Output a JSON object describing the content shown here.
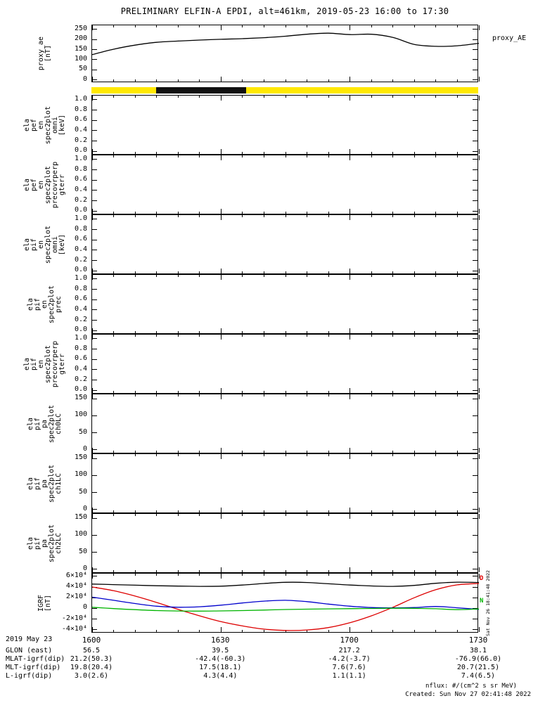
{
  "title": "PRELIMINARY ELFIN-A EPDI, alt=461km, 2019-05-23 16:00 to 17:30",
  "colors": {
    "availability_yellow": "#ffe800",
    "availability_black": "#111111",
    "igrf_red": "#dd0000",
    "igrf_blue": "#0000cc",
    "igrf_green": "#00b400",
    "line_black": "#000000"
  },
  "chart_data": [
    {
      "id": "proxy-ae",
      "type": "line",
      "ylabel_lines": [
        "proxy_ae",
        "[nT]"
      ],
      "right_label": "proxy_AE",
      "ylim": [
        -15,
        270
      ],
      "yticks": [
        {
          "v": 0,
          "label": "0"
        },
        {
          "v": 50,
          "label": "50"
        },
        {
          "v": 100,
          "label": "100"
        },
        {
          "v": 150,
          "label": "150"
        },
        {
          "v": 200,
          "label": "200"
        },
        {
          "v": 250,
          "label": "250"
        }
      ],
      "x_start": "16:00",
      "x_minutes": [
        0,
        5,
        10,
        15,
        20,
        25,
        30,
        35,
        40,
        45,
        50,
        55,
        60,
        65,
        70,
        75,
        80,
        85,
        90
      ],
      "series": [
        {
          "name": "proxy_AE",
          "color": "#000000",
          "values": [
            125,
            152,
            172,
            186,
            192,
            197,
            201,
            204,
            209,
            216,
            226,
            231,
            224,
            226,
            210,
            175,
            166,
            169,
            181
          ]
        }
      ]
    },
    {
      "id": "availability",
      "type": "interval-bar",
      "bar_color": "#ffe800",
      "segments": [
        {
          "start_min": 15,
          "end_min": 36,
          "color": "#111111"
        }
      ]
    },
    {
      "id": "ela-pef-en-omni",
      "type": "spec",
      "ylabel_lines": [
        "ela",
        "pef",
        "en",
        "spec2plot",
        "omni",
        "[keV]"
      ],
      "ylim": [
        -0.08,
        1.08
      ],
      "yticks": [
        {
          "v": 0,
          "label": "0.0"
        },
        {
          "v": 0.2,
          "label": "0.2"
        },
        {
          "v": 0.4,
          "label": "0.4"
        },
        {
          "v": 0.6,
          "label": "0.6"
        },
        {
          "v": 0.8,
          "label": "0.8"
        },
        {
          "v": 1,
          "label": "1.0"
        }
      ],
      "series": []
    },
    {
      "id": "ela-pef-en-precovrperp-gterr",
      "type": "spec",
      "ylabel_lines": [
        "ela",
        "pef",
        "en",
        "spec2plot",
        "precovrperp",
        "gterr"
      ],
      "ylim": [
        -0.08,
        1.08
      ],
      "yticks": [
        {
          "v": 0,
          "label": "0.0"
        },
        {
          "v": 0.2,
          "label": "0.2"
        },
        {
          "v": 0.4,
          "label": "0.4"
        },
        {
          "v": 0.6,
          "label": "0.6"
        },
        {
          "v": 0.8,
          "label": "0.8"
        },
        {
          "v": 1,
          "label": "1.0"
        }
      ],
      "series": []
    },
    {
      "id": "ela-pif-en-omni",
      "type": "spec",
      "ylabel_lines": [
        "ela",
        "pif",
        "en",
        "spec2plot",
        "omni",
        "[keV]"
      ],
      "ylim": [
        -0.08,
        1.08
      ],
      "yticks": [
        {
          "v": 0,
          "label": "0.0"
        },
        {
          "v": 0.2,
          "label": "0.2"
        },
        {
          "v": 0.4,
          "label": "0.4"
        },
        {
          "v": 0.6,
          "label": "0.6"
        },
        {
          "v": 0.8,
          "label": "0.8"
        },
        {
          "v": 1,
          "label": "1.0"
        }
      ],
      "series": []
    },
    {
      "id": "ela-pif-en-prec",
      "type": "spec",
      "ylabel_lines": [
        "ela",
        "pif",
        "en",
        "spec2plot",
        "prec"
      ],
      "ylim": [
        -0.08,
        1.08
      ],
      "yticks": [
        {
          "v": 0,
          "label": "0.0"
        },
        {
          "v": 0.2,
          "label": "0.2"
        },
        {
          "v": 0.4,
          "label": "0.4"
        },
        {
          "v": 0.6,
          "label": "0.6"
        },
        {
          "v": 0.8,
          "label": "0.8"
        },
        {
          "v": 1,
          "label": "1.0"
        }
      ],
      "series": []
    },
    {
      "id": "ela-pif-en-precovrperp-gterr",
      "type": "spec",
      "ylabel_lines": [
        "ela",
        "pif",
        "en",
        "spec2plot",
        "precovrperp",
        "gterr"
      ],
      "ylim": [
        -0.08,
        1.08
      ],
      "yticks": [
        {
          "v": 0,
          "label": "0.0"
        },
        {
          "v": 0.2,
          "label": "0.2"
        },
        {
          "v": 0.4,
          "label": "0.4"
        },
        {
          "v": 0.6,
          "label": "0.6"
        },
        {
          "v": 0.8,
          "label": "0.8"
        },
        {
          "v": 1,
          "label": "1.0"
        }
      ],
      "series": []
    },
    {
      "id": "ela-pif-pa-ch0lc",
      "type": "spec",
      "ylabel_lines": [
        "ela",
        "pif",
        "pa",
        "spec2plot",
        "ch0LC"
      ],
      "ylim": [
        -13,
        163
      ],
      "yticks": [
        {
          "v": 0,
          "label": "0"
        },
        {
          "v": 50,
          "label": "50"
        },
        {
          "v": 100,
          "label": "100"
        },
        {
          "v": 150,
          "label": "150"
        }
      ],
      "series": []
    },
    {
      "id": "ela-pif-pa-ch1lc",
      "type": "spec",
      "ylabel_lines": [
        "ela",
        "pif",
        "pa",
        "spec2plot",
        "ch1LC"
      ],
      "ylim": [
        -13,
        163
      ],
      "yticks": [
        {
          "v": 0,
          "label": "0"
        },
        {
          "v": 50,
          "label": "50"
        },
        {
          "v": 100,
          "label": "100"
        },
        {
          "v": 150,
          "label": "150"
        }
      ],
      "series": []
    },
    {
      "id": "ela-pif-pa-ch2lc",
      "type": "spec",
      "ylabel_lines": [
        "ela",
        "pif",
        "pa",
        "spec2plot",
        "ch2LC"
      ],
      "ylim": [
        -13,
        163
      ],
      "yticks": [
        {
          "v": 0,
          "label": "0"
        },
        {
          "v": 50,
          "label": "50"
        },
        {
          "v": 100,
          "label": "100"
        },
        {
          "v": 150,
          "label": "150"
        }
      ],
      "series": []
    },
    {
      "id": "igrf",
      "type": "line",
      "ylabel_lines": [
        "IGRF",
        "[nT]"
      ],
      "ylim": [
        -47000,
        65000
      ],
      "yticks": [
        {
          "v": 60000,
          "label": "6×10⁴"
        },
        {
          "v": 40000,
          "label": "4×10⁴"
        },
        {
          "v": 20000,
          "label": "2×10⁴"
        },
        {
          "v": 0,
          "label": "0"
        },
        {
          "v": -20000,
          "label": "-2×10⁴"
        },
        {
          "v": -40000,
          "label": "-4×10⁴"
        }
      ],
      "x_minutes": [
        0,
        5,
        10,
        15,
        20,
        25,
        30,
        35,
        40,
        45,
        50,
        55,
        60,
        65,
        70,
        75,
        80,
        85,
        90
      ],
      "series": [
        {
          "name": "igrf-black",
          "color": "#000000",
          "values": [
            45500,
            44500,
            43400,
            42400,
            41700,
            41200,
            41600,
            43600,
            46600,
            48800,
            48400,
            46000,
            43600,
            42000,
            41100,
            43000,
            47000,
            49000,
            48500
          ]
        },
        {
          "name": "igrf-red",
          "color": "#dd0000",
          "values": [
            40000,
            33000,
            23000,
            11000,
            -2000,
            -14000,
            -25000,
            -33000,
            -39000,
            -41500,
            -40500,
            -36000,
            -27000,
            -14000,
            2000,
            20000,
            35000,
            44000,
            46500
          ]
        },
        {
          "name": "igrf-blue",
          "color": "#0000cc",
          "values": [
            21000,
            15000,
            9000,
            4000,
            2000,
            3000,
            6000,
            10000,
            13500,
            15000,
            12500,
            8000,
            4000,
            1500,
            800,
            1500,
            3500,
            1000,
            -2000
          ]
        },
        {
          "name": "igrf-green",
          "color": "#00b400",
          "values": [
            2000,
            -500,
            -2500,
            -4200,
            -5000,
            -5200,
            -4800,
            -4200,
            -3200,
            -2200,
            -1500,
            -1000,
            -600,
            -200,
            200,
            0,
            -800,
            -2500,
            -1200
          ]
        }
      ],
      "right_letters": [
        {
          "text": "D",
          "color": "#dd0000",
          "v": 55000
        },
        {
          "text": "N",
          "color": "#00b400",
          "v": 12000
        }
      ],
      "side_note": "Sat Nov 26 18:41:48 2022"
    }
  ],
  "x_axis": {
    "time_ticks": [
      {
        "m": 0,
        "label": "1600"
      },
      {
        "m": 30,
        "label": "1630"
      },
      {
        "m": 60,
        "label": "1700"
      },
      {
        "m": 90,
        "label": "1730"
      }
    ]
  },
  "bottom_axis": {
    "date_label": "2019 May 23",
    "rows": [
      {
        "label": "GLON (east)",
        "values": [
          "56.5",
          "39.5",
          "217.2",
          "38.1"
        ]
      },
      {
        "label": "MLAT-igrf(dip)",
        "values": [
          "21.2(50.3)",
          "-42.4(-60.3)",
          "-4.2(-3.7)",
          "-76.9(66.0)"
        ]
      },
      {
        "label": "MLT-igrf(dip)",
        "values": [
          "19.8(20.4)",
          "17.5(18.1)",
          "7.6(7.6)",
          "20.7(21.5)"
        ]
      },
      {
        "label": "L-igrf(dip)",
        "values": [
          "3.0(2.6)",
          "4.3(4.4)",
          "1.1(1.1)",
          "7.4(6.5)"
        ]
      }
    ]
  },
  "footer": {
    "nflux": "nflux: #/(cm^2 s sr MeV)",
    "created": "Created: Sun Nov 27 02:41:48 2022"
  }
}
